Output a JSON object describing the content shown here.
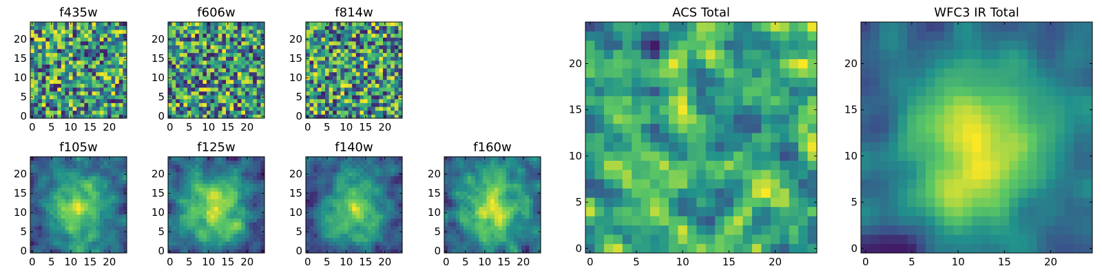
{
  "chart_data": {
    "type": "heatmap",
    "grid_size": 25,
    "colormap": "viridis",
    "colormap_stops": [
      "#440154",
      "#3b528b",
      "#21918c",
      "#5ec962",
      "#fde725"
    ],
    "panels": [
      {
        "title": "f435w",
        "kind": "noise",
        "seed": 11,
        "smooth": 0,
        "xticks": [
          "0",
          "5",
          "10",
          "15",
          "20"
        ],
        "yticks": [
          "0",
          "5",
          "10",
          "15",
          "20"
        ],
        "xlim": [
          0,
          25
        ],
        "ylim": [
          0,
          25
        ]
      },
      {
        "title": "f606w",
        "kind": "noise",
        "seed": 23,
        "smooth": 0,
        "xticks": [
          "0",
          "5",
          "10",
          "15",
          "20"
        ],
        "yticks": [
          "0",
          "5",
          "10",
          "15",
          "20"
        ],
        "xlim": [
          0,
          25
        ],
        "ylim": [
          0,
          25
        ]
      },
      {
        "title": "f814w",
        "kind": "noise",
        "seed": 37,
        "smooth": 0,
        "xticks": [
          "0",
          "5",
          "10",
          "15",
          "20"
        ],
        "yticks": [
          "0",
          "5",
          "10",
          "15",
          "20"
        ],
        "xlim": [
          0,
          25
        ],
        "ylim": [
          0,
          25
        ]
      },
      {
        "title": "f105w",
        "kind": "blob",
        "seed": 41,
        "smooth": 1,
        "xticks": [
          "0",
          "5",
          "10",
          "15",
          "20"
        ],
        "yticks": [
          "0",
          "5",
          "10",
          "15",
          "20"
        ],
        "xlim": [
          0,
          25
        ],
        "ylim": [
          0,
          25
        ]
      },
      {
        "title": "f125w",
        "kind": "blob",
        "seed": 53,
        "smooth": 1,
        "xticks": [
          "0",
          "5",
          "10",
          "15",
          "20"
        ],
        "yticks": [
          "0",
          "5",
          "10",
          "15",
          "20"
        ],
        "xlim": [
          0,
          25
        ],
        "ylim": [
          0,
          25
        ]
      },
      {
        "title": "f140w",
        "kind": "blob",
        "seed": 67,
        "smooth": 1,
        "xticks": [
          "0",
          "5",
          "10",
          "15",
          "20"
        ],
        "yticks": [
          "0",
          "5",
          "10",
          "15",
          "20"
        ],
        "xlim": [
          0,
          25
        ],
        "ylim": [
          0,
          25
        ]
      },
      {
        "title": "f160w",
        "kind": "blob",
        "seed": 79,
        "smooth": 1,
        "xticks": [
          "0",
          "5",
          "10",
          "15",
          "20"
        ],
        "yticks": [
          "0",
          "5",
          "10",
          "15",
          "20"
        ],
        "xlim": [
          0,
          25
        ],
        "ylim": [
          0,
          25
        ]
      },
      {
        "title": "ACS Total",
        "kind": "noise",
        "seed": 89,
        "smooth": 1,
        "xticks": [
          "0",
          "5",
          "10",
          "15",
          "20"
        ],
        "yticks": [
          "0",
          "5",
          "10",
          "15",
          "20"
        ],
        "xlim": [
          0,
          25
        ],
        "ylim": [
          0,
          25
        ]
      },
      {
        "title": "WFC3 IR Total",
        "kind": "blob",
        "seed": 97,
        "smooth": 2,
        "xticks": [
          "0",
          "5",
          "10",
          "15",
          "20"
        ],
        "yticks": [
          "0",
          "5",
          "10",
          "15",
          "20"
        ],
        "xlim": [
          0,
          25
        ],
        "ylim": [
          0,
          25
        ]
      }
    ]
  }
}
